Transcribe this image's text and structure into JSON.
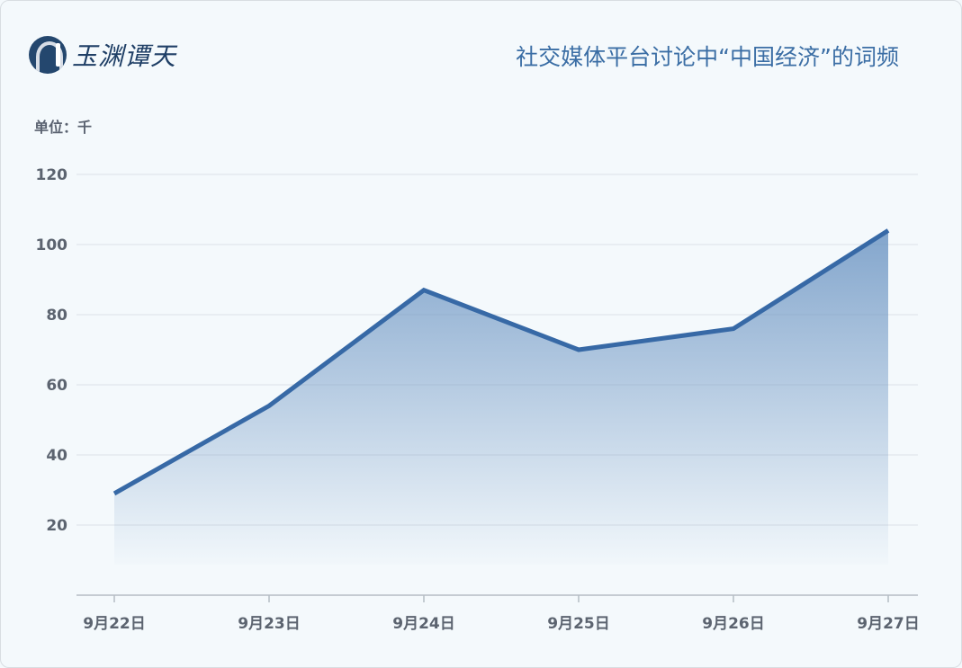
{
  "logo": {
    "text": "玉渊谭天"
  },
  "chart_data": {
    "type": "area",
    "title": "社交媒体平台讨论中“中国经济”的词频",
    "unit_label": "单位：千",
    "categories": [
      "9月22日",
      "9月23日",
      "9月24日",
      "9月25日",
      "9月26日",
      "9月27日"
    ],
    "values": [
      29,
      54,
      87,
      70,
      76,
      104
    ],
    "yticks": [
      20,
      40,
      60,
      80,
      100,
      120
    ],
    "ylim": [
      0,
      120
    ],
    "grid": true,
    "colors": {
      "line": "#3769a6",
      "fill": "#6f97c4"
    }
  }
}
